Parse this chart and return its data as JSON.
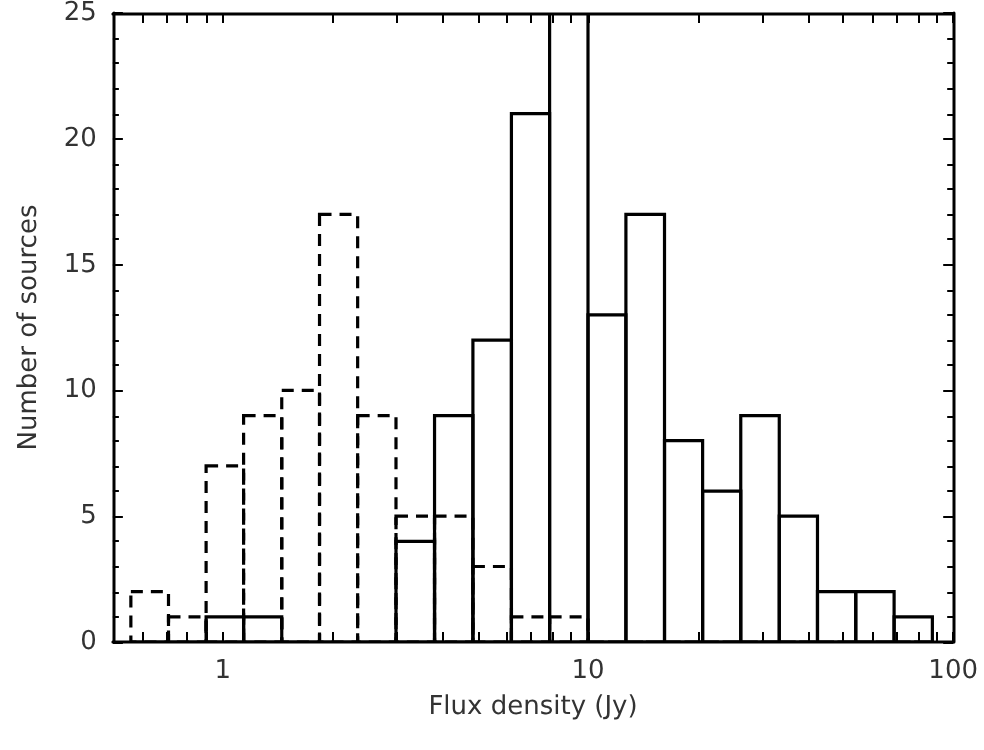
{
  "chart_data": {
    "type": "histogram",
    "xlabel": "Flux density (Jy)",
    "ylabel": "Number of sources",
    "log": "x",
    "grid": false,
    "xlim": [
      0.5,
      100
    ],
    "xticks": [
      {
        "value": 0.6,
        "label": null
      },
      {
        "value": 0.7,
        "label": null
      },
      {
        "value": 0.8,
        "label": null
      },
      {
        "value": 0.9,
        "label": null
      },
      1,
      {
        "value": 2,
        "label": null
      },
      {
        "value": 3,
        "label": null
      },
      {
        "value": 4,
        "label": null
      },
      {
        "value": 5,
        "label": null
      },
      {
        "value": 6,
        "label": null
      },
      {
        "value": 7,
        "label": null
      },
      {
        "value": 8,
        "label": null
      },
      {
        "value": 9,
        "label": null
      },
      10,
      {
        "value": 20,
        "label": null
      },
      {
        "value": 30,
        "label": null
      },
      {
        "value": 40,
        "label": null
      },
      {
        "value": 50,
        "label": null
      },
      {
        "value": 60,
        "label": null
      },
      {
        "value": 70,
        "label": null
      },
      {
        "value": 80,
        "label": null
      },
      {
        "value": 90,
        "label": null
      },
      100
    ],
    "ylim": [
      0,
      25
    ],
    "yticks": [
      0,
      5,
      10,
      15,
      20,
      25
    ],
    "bins": [
      0.56,
      0.71,
      0.9,
      1.14,
      1.45,
      1.84,
      2.34,
      2.98,
      3.8,
      4.84,
      6.17,
      7.85,
      10,
      12.7,
      16.2,
      20.6,
      26.2,
      33.4,
      42.5,
      54.1,
      68.9,
      87.7
    ],
    "series": [
      {
        "color": "#000000",
        "line_style": "dashed",
        "values": [
          2,
          1,
          7,
          9,
          10,
          17,
          9,
          5,
          5,
          3,
          1,
          1,
          0,
          0,
          0,
          0,
          0,
          0,
          0,
          0,
          0
        ]
      },
      {
        "color": "#000000",
        "line_style": "solid",
        "values": [
          0,
          0,
          1,
          1,
          0,
          0,
          0,
          4,
          9,
          12,
          21,
          25,
          13,
          17,
          8,
          6,
          9,
          5,
          2,
          2,
          1
        ]
      }
    ]
  }
}
